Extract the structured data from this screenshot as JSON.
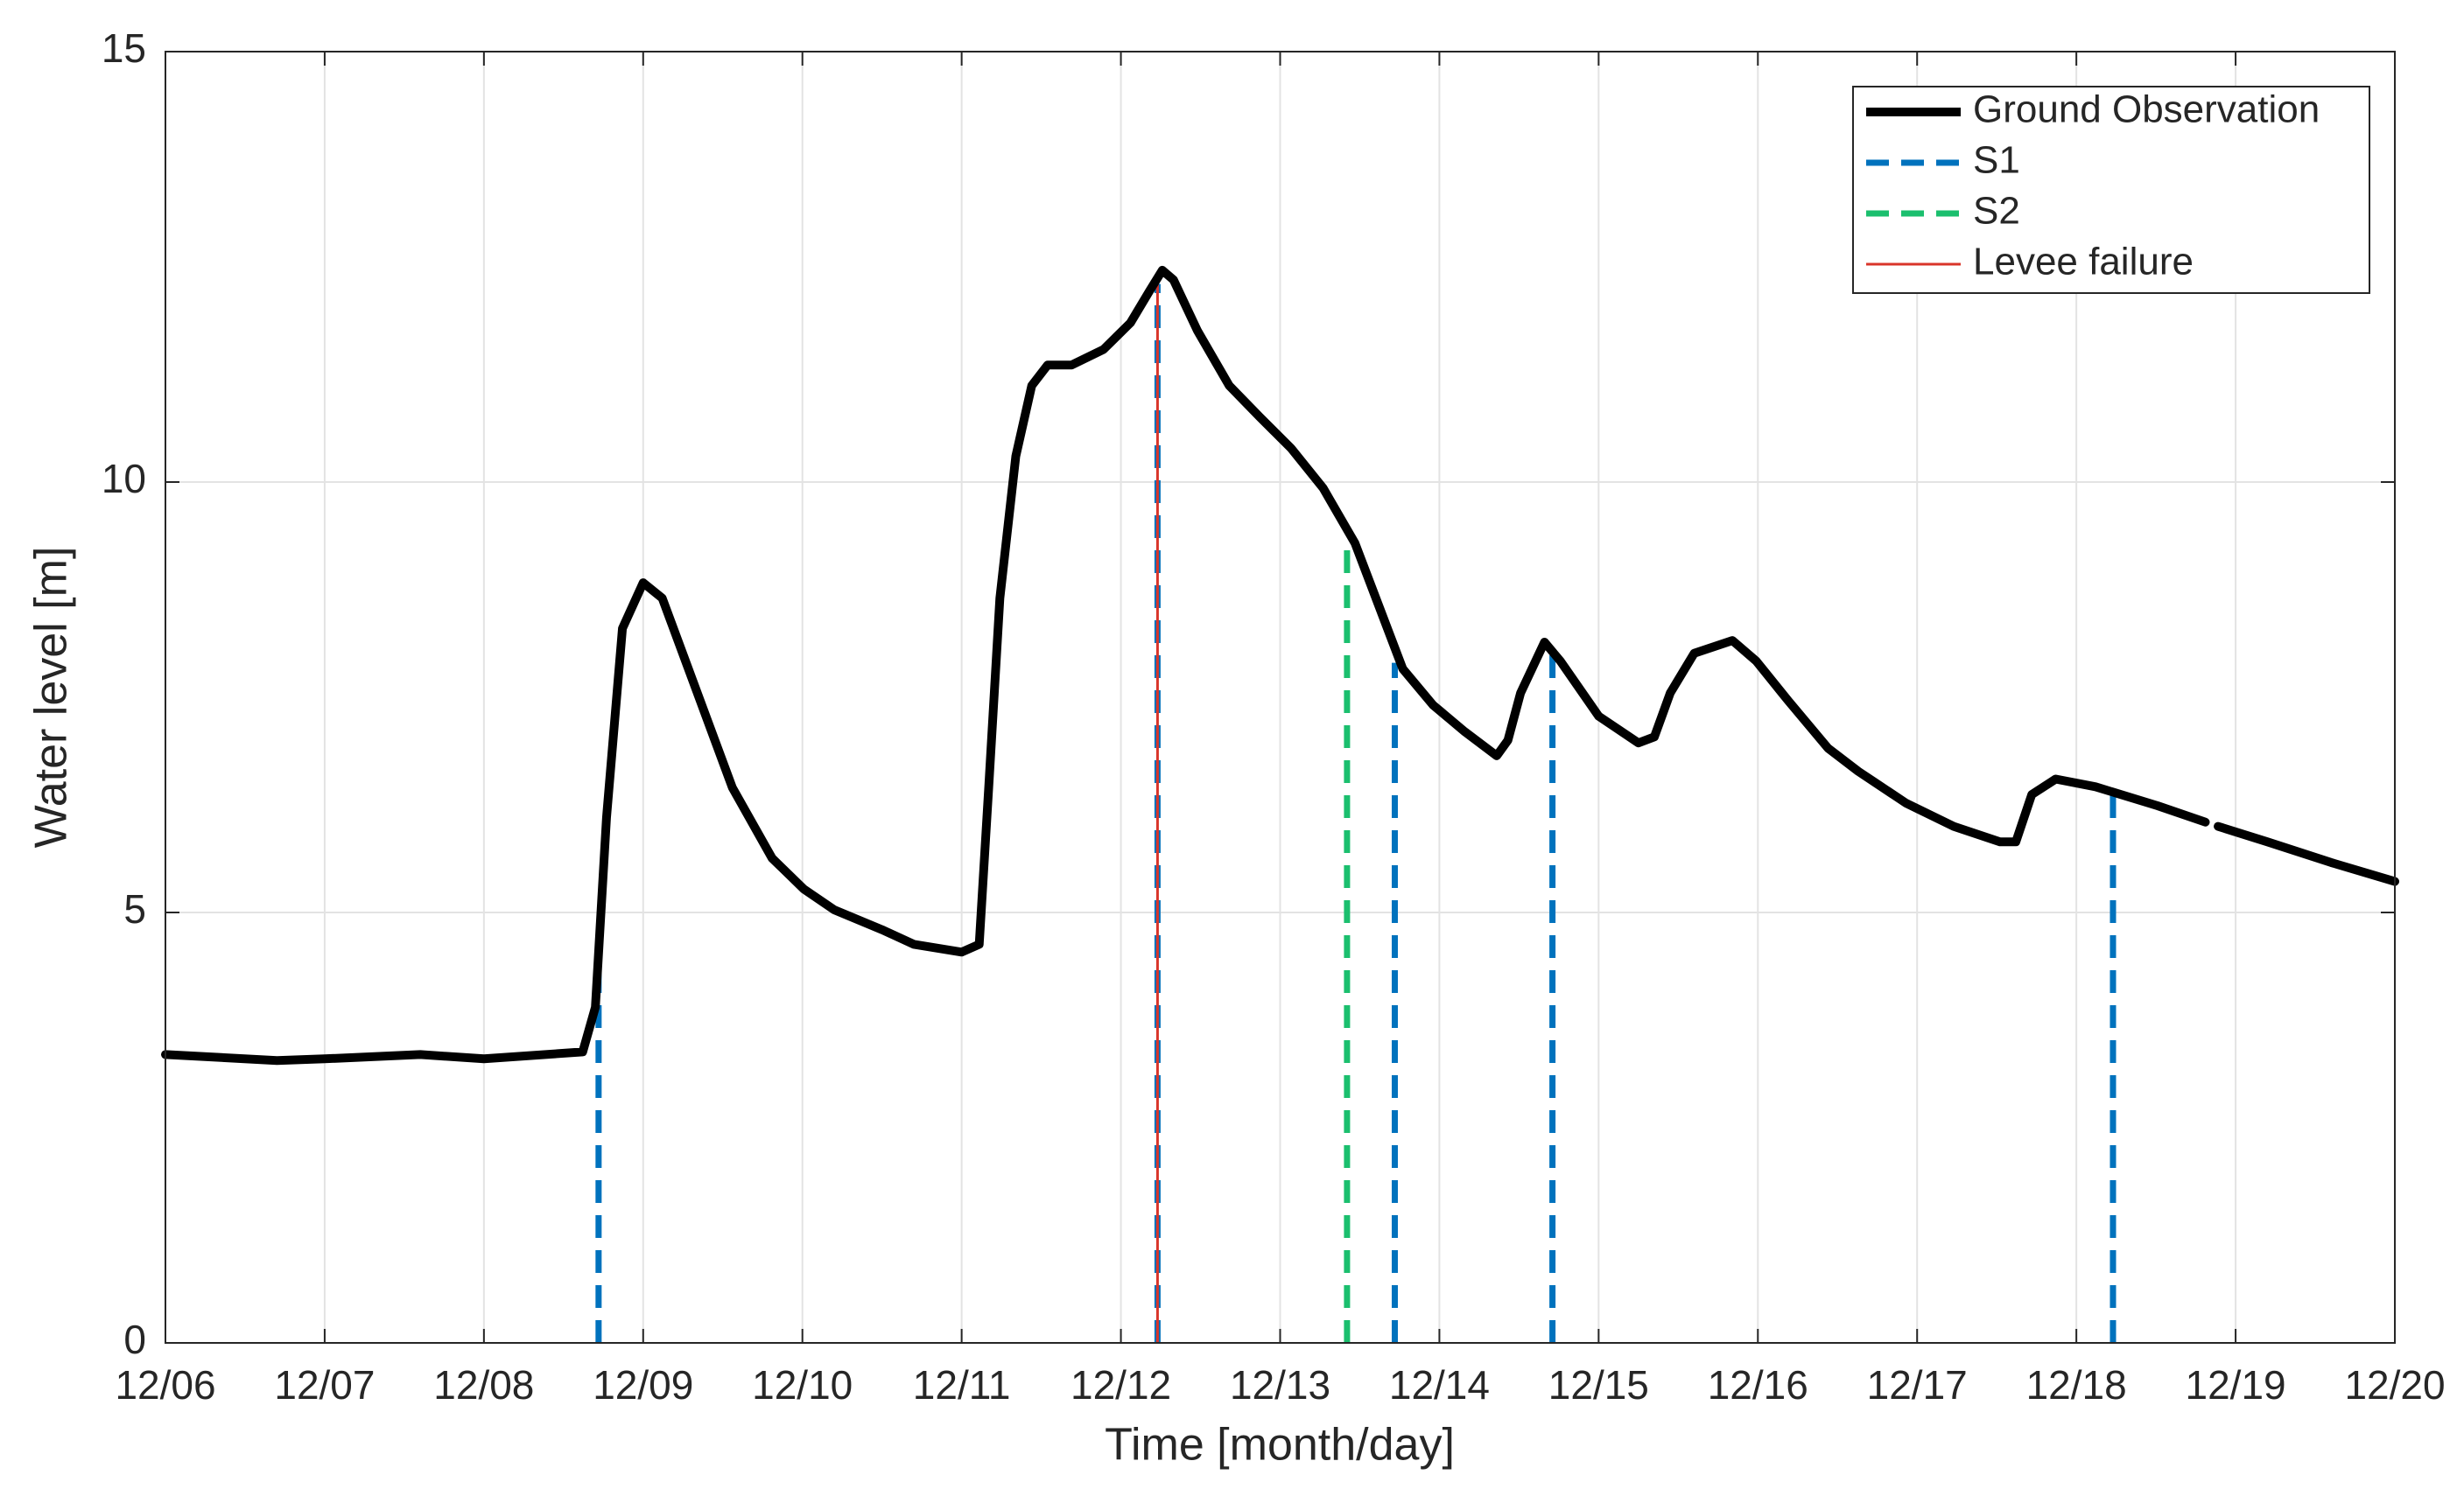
{
  "chart_data": {
    "type": "line",
    "xlabel": "Time [month/day]",
    "ylabel": "Water level [m]",
    "xlim": [
      6,
      20
    ],
    "ylim": [
      0,
      15
    ],
    "xticks": [
      {
        "value": 6,
        "label": "12/06"
      },
      {
        "value": 7,
        "label": "12/07"
      },
      {
        "value": 8,
        "label": "12/08"
      },
      {
        "value": 9,
        "label": "12/09"
      },
      {
        "value": 10,
        "label": "12/10"
      },
      {
        "value": 11,
        "label": "12/11"
      },
      {
        "value": 12,
        "label": "12/12"
      },
      {
        "value": 13,
        "label": "12/13"
      },
      {
        "value": 14,
        "label": "12/14"
      },
      {
        "value": 15,
        "label": "12/15"
      },
      {
        "value": 16,
        "label": "12/16"
      },
      {
        "value": 17,
        "label": "12/17"
      },
      {
        "value": 18,
        "label": "12/18"
      },
      {
        "value": 19,
        "label": "12/19"
      },
      {
        "value": 20,
        "label": "12/20"
      }
    ],
    "yticks": [
      0,
      5,
      10,
      15
    ],
    "grid": true,
    "legend": "upper right",
    "series": [
      {
        "name": "Ground Observation",
        "color": "#000000",
        "style": "solid",
        "width": 10,
        "x": [
          6.0,
          6.7,
          7.0,
          7.6,
          8.0,
          8.62,
          8.7,
          8.77,
          8.87,
          9.0,
          9.12,
          9.31,
          9.56,
          9.81,
          10.01,
          10.2,
          10.5,
          10.7,
          11.0,
          11.11,
          11.17,
          11.24,
          11.34,
          11.44,
          11.54,
          11.69,
          11.89,
          12.06,
          12.18,
          12.26,
          12.33,
          12.48,
          12.68,
          12.87,
          13.07,
          13.27,
          13.47,
          13.62,
          13.77,
          13.96,
          14.16,
          14.36,
          14.43,
          14.51,
          14.66,
          14.76,
          15.0,
          15.25,
          15.35,
          15.45,
          15.6,
          15.84,
          15.99,
          16.19,
          16.44,
          16.63,
          16.93,
          17.23,
          17.52,
          17.62,
          17.72,
          17.87,
          18.12,
          18.51,
          18.81,
          18.85,
          18.89,
          19.2,
          19.6,
          20.0
        ],
        "values": [
          3.35,
          3.28,
          3.3,
          3.35,
          3.3,
          3.38,
          3.9,
          6.1,
          8.3,
          8.83,
          8.65,
          7.7,
          6.45,
          5.63,
          5.27,
          5.03,
          4.8,
          4.63,
          4.54,
          4.63,
          6.46,
          8.65,
          10.3,
          11.12,
          11.36,
          11.36,
          11.54,
          11.85,
          12.22,
          12.46,
          12.35,
          11.76,
          11.12,
          10.76,
          10.39,
          9.93,
          9.29,
          8.56,
          7.83,
          7.41,
          7.1,
          6.82,
          7.0,
          7.55,
          8.14,
          7.92,
          7.28,
          6.97,
          7.04,
          7.55,
          8.01,
          8.16,
          7.92,
          7.46,
          6.91,
          6.64,
          6.27,
          6.0,
          5.82,
          5.82,
          6.37,
          6.55,
          6.46,
          6.24,
          6.05,
          null,
          6.0,
          5.82,
          5.58,
          5.36
        ]
      },
      {
        "name": "S1",
        "color": "#0072bd",
        "style": "dashed",
        "width": 7,
        "x": [
          8.72,
          12.23,
          13.72,
          14.71,
          18.23
        ],
        "values": [
          4.6,
          12.3,
          7.9,
          8.1,
          6.4
        ]
      },
      {
        "name": "S2",
        "color": "#1bbf6e",
        "style": "dashed",
        "width": 7,
        "x": [
          13.42
        ],
        "values": [
          9.3
        ]
      },
      {
        "name": "Levee failure",
        "color": "#d9352a",
        "style": "solid",
        "width": 3,
        "x": [
          12.23
        ],
        "values": [
          12.3
        ]
      }
    ]
  }
}
